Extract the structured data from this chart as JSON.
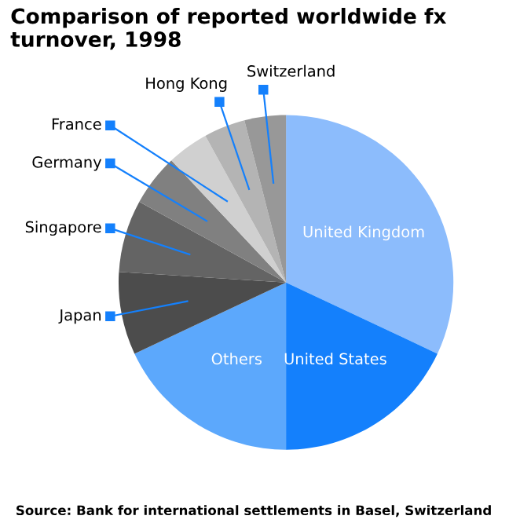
{
  "chart_data": {
    "type": "pie",
    "title": "Comparison of reported worldwide fx turnover, 1998",
    "categories": [
      "United Kingdom",
      "United States",
      "Others",
      "Japan",
      "Singapore",
      "Germany",
      "France",
      "Hong Kong",
      "Switzerland"
    ],
    "values": [
      32,
      18,
      18,
      8,
      7,
      5,
      4,
      4,
      4
    ],
    "colors": [
      "#8cbcfc",
      "#1480fc",
      "#5ca8fc",
      "#4c4c4c",
      "#646464",
      "#808080",
      "#d0d0d0",
      "#b4b4b4",
      "#989898"
    ],
    "annotations": [
      "Source: Bank for international settlements in Basel, Switzerland"
    ]
  }
}
